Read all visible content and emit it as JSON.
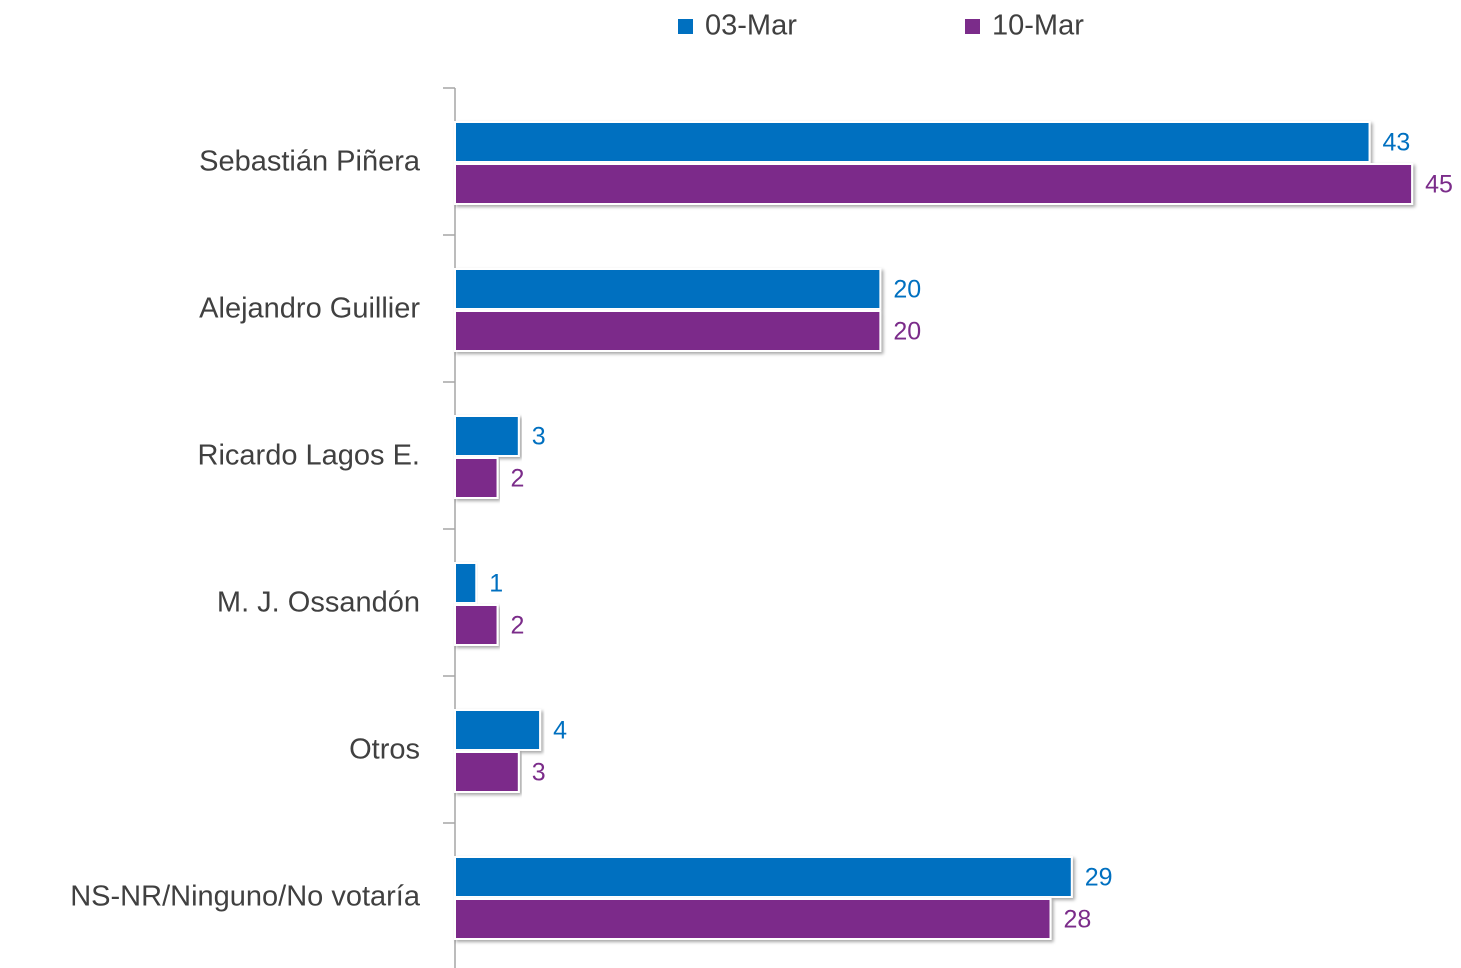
{
  "chart_data": {
    "type": "hbar",
    "categories": [
      "Sebastián Piñera",
      "Alejandro Guillier",
      "Ricardo Lagos E.",
      "M. J. Ossandón",
      "Otros",
      "NS-NR/Ninguno/No votaría"
    ],
    "series": [
      {
        "name": "03-Mar",
        "color": "#0070c0",
        "values": [
          43,
          20,
          3,
          1,
          4,
          29
        ]
      },
      {
        "name": "10-Mar",
        "color": "#7b2c8a",
        "values": [
          45,
          20,
          2,
          2,
          3,
          28
        ]
      }
    ],
    "xlim": [
      0,
      47.3
    ],
    "legend": "top",
    "data_labels": true
  }
}
